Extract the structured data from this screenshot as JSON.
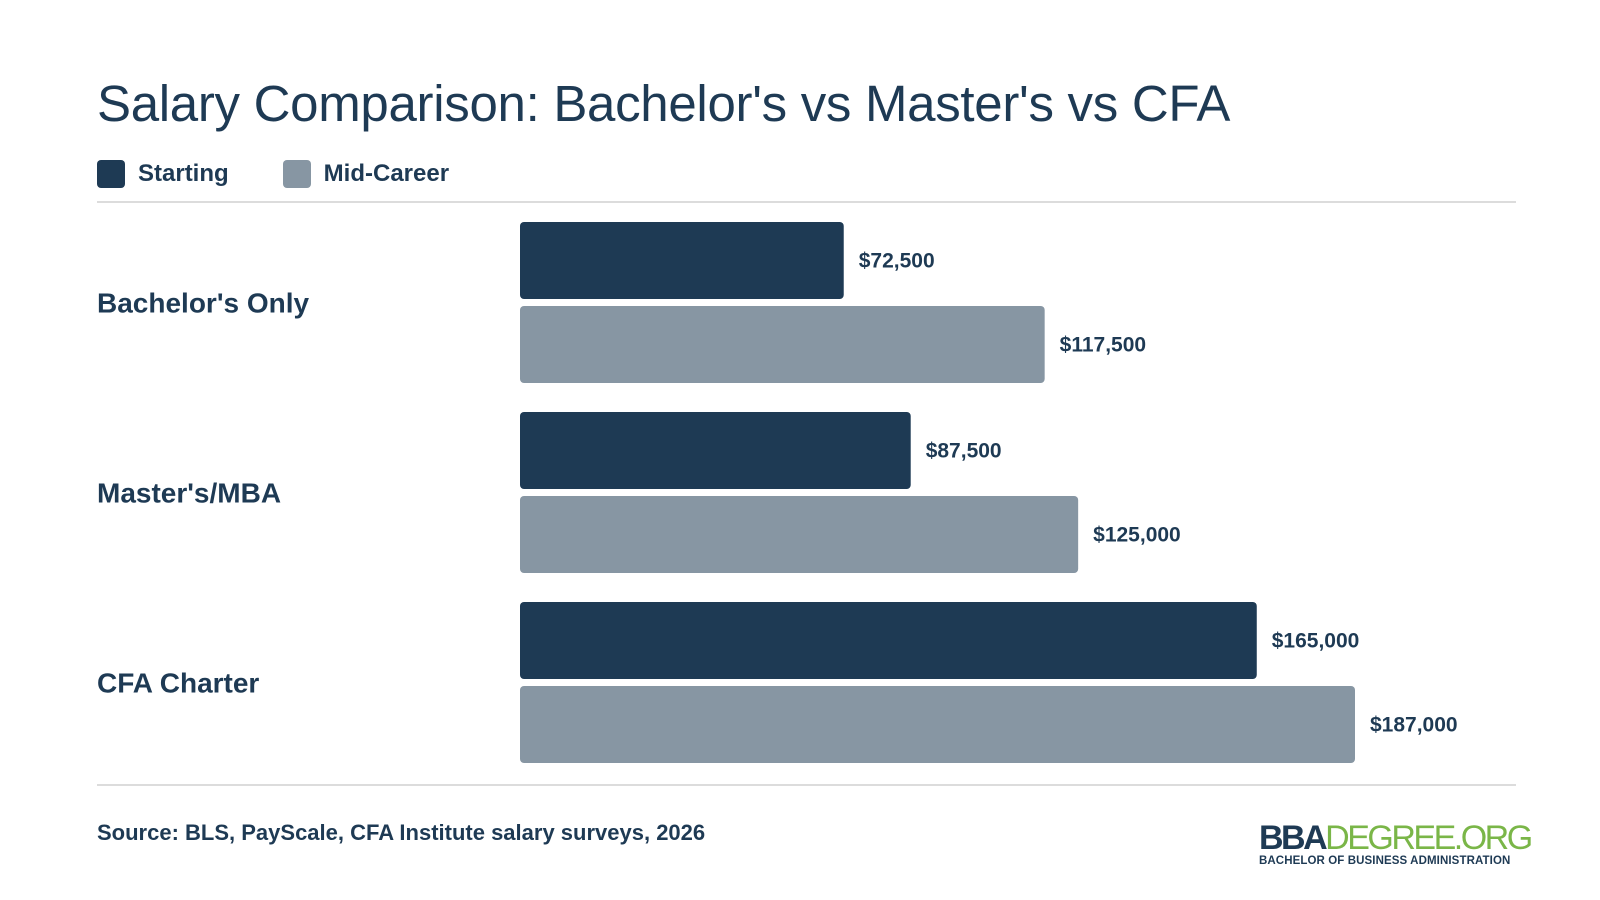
{
  "chart_data": {
    "type": "bar",
    "orientation": "horizontal",
    "title": "Salary Comparison: Bachelor's vs Master's vs CFA",
    "categories": [
      "Bachelor's Only",
      "Master's/MBA",
      "CFA Charter"
    ],
    "series": [
      {
        "name": "Starting",
        "values": [
          72500,
          87500,
          165000
        ],
        "labels": [
          "$72,500",
          "$87,500",
          "$165,000"
        ],
        "color": "#1e3a54"
      },
      {
        "name": "Mid-Career",
        "values": [
          117500,
          125000,
          187000
        ],
        "labels": [
          "$117,500",
          "$125,000",
          "$187,000"
        ],
        "color": "#8796a3"
      }
    ],
    "xlim": [
      0,
      187000
    ],
    "grid": false,
    "legend_position": "top-left"
  },
  "legend": {
    "starting": "Starting",
    "mid_career": "Mid-Career"
  },
  "colors": {
    "starting": "#1e3a54",
    "mid_career": "#8796a3",
    "text": "#1e3a54",
    "logo_accent": "#7ab648"
  },
  "footer": {
    "source": "Source: BLS, PayScale, CFA Institute salary surveys, 2026"
  },
  "logo": {
    "bold_part": "BBA",
    "light_part": "DEGREE.ORG",
    "tagline": "BACHELOR OF BUSINESS ADMINISTRATION"
  }
}
